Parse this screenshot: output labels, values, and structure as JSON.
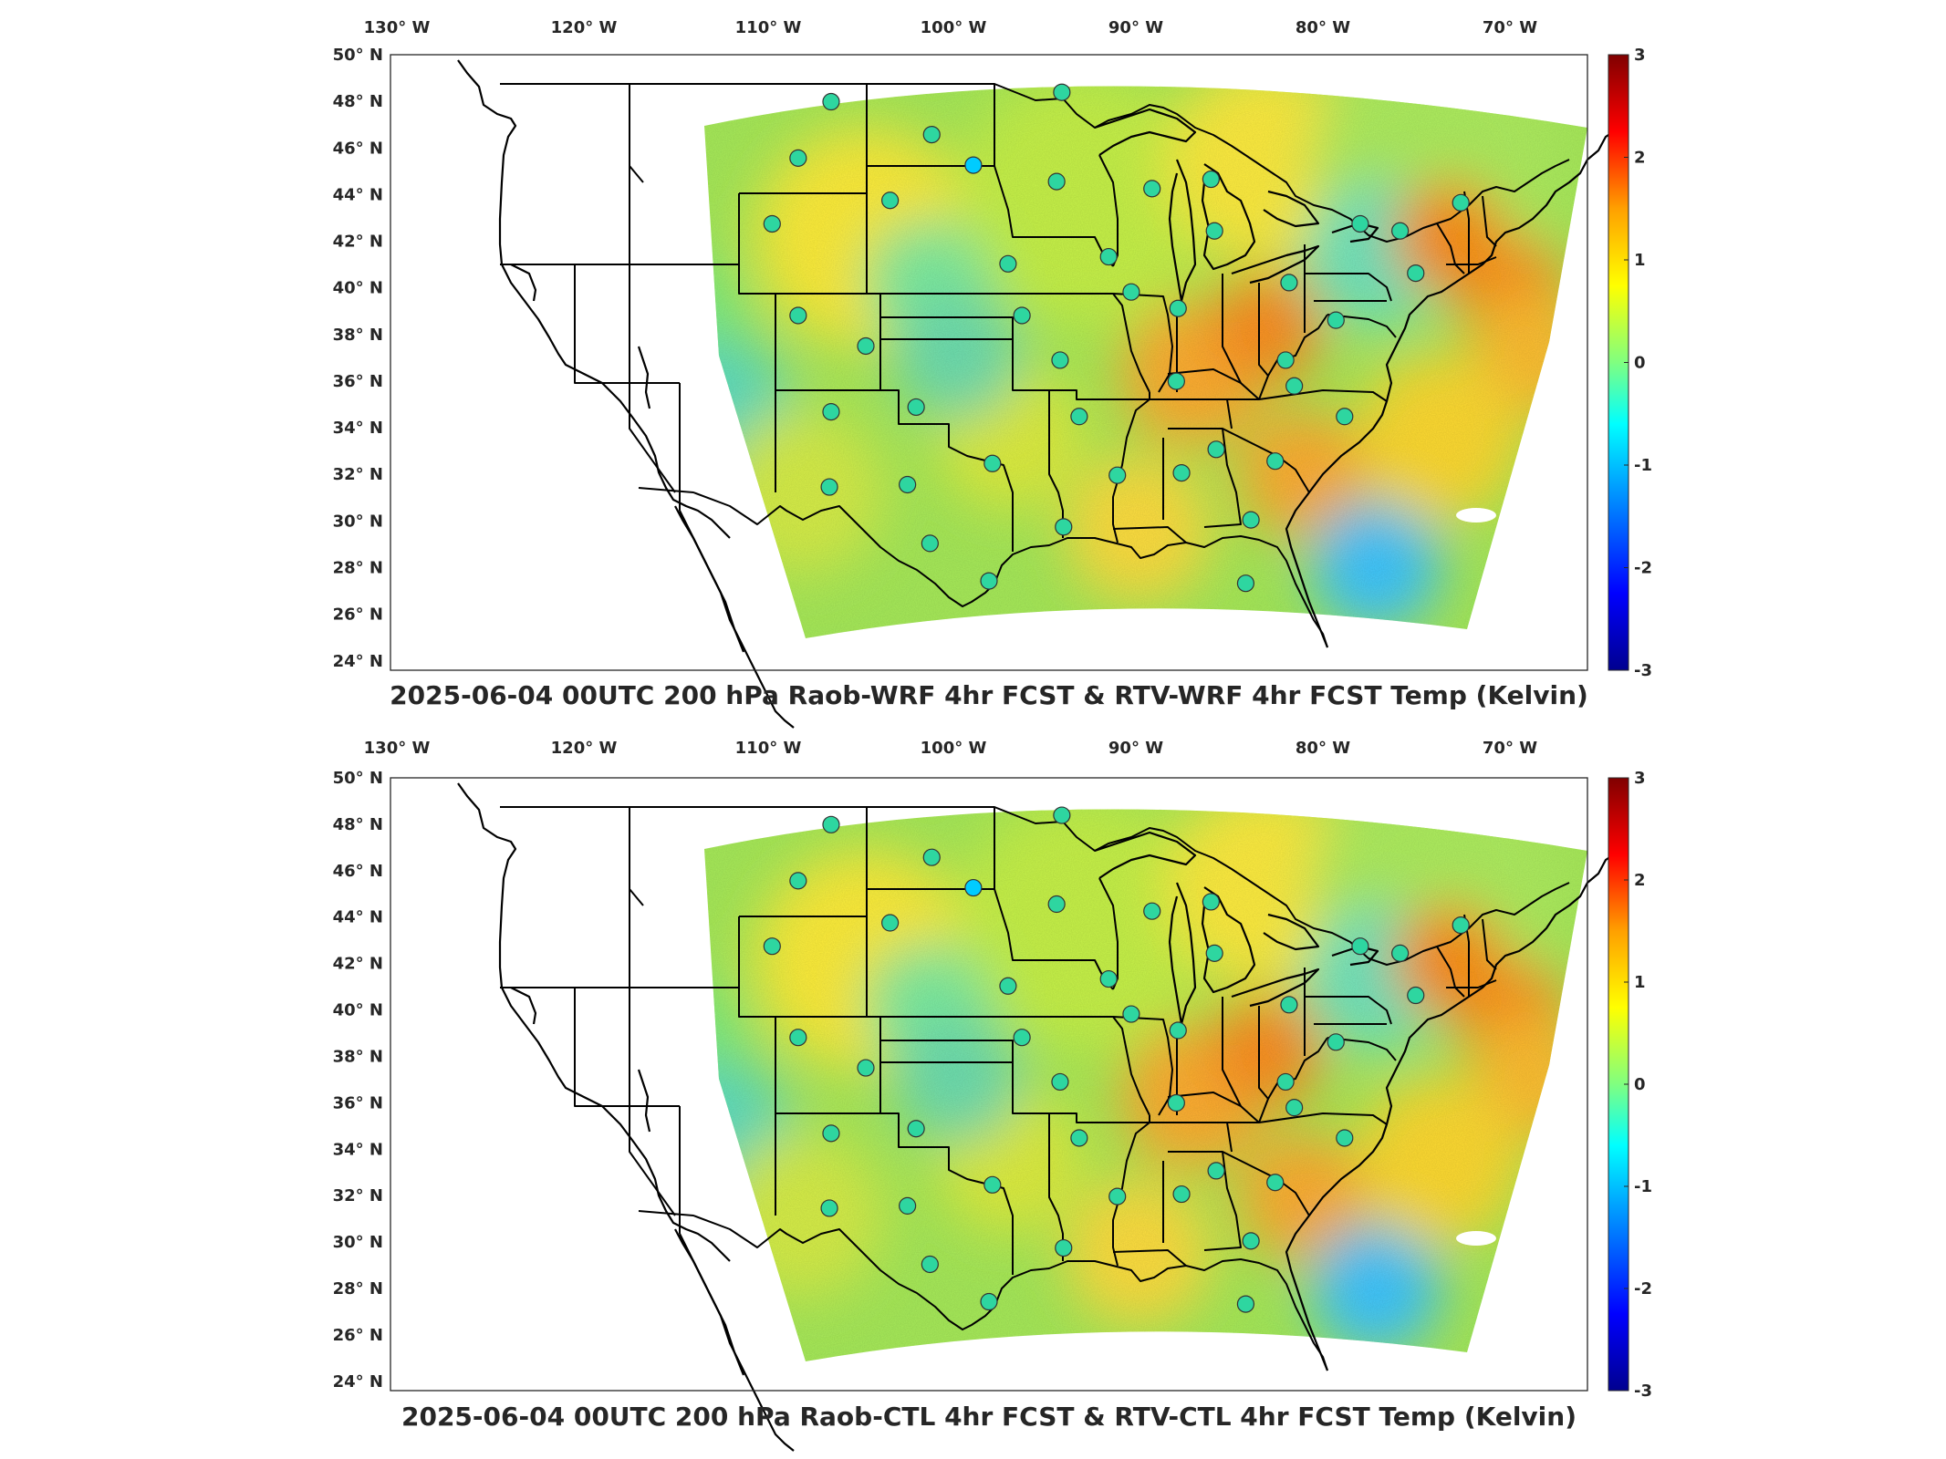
{
  "colors": {
    "scale": [
      "#00008f",
      "#0000ff",
      "#00a0ff",
      "#00ffff",
      "#80ff80",
      "#ffff00",
      "#ffa000",
      "#ff0000",
      "#800000"
    ],
    "frame": "#262626",
    "borders": "#000000",
    "station_fill": "#2ed6a0",
    "station_fill_strong": "#00ccff"
  },
  "panels": [
    {
      "title": "2025-06-04 00UTC 200 hPa Raob-WRF 4hr FCST & RTV-WRF 4hr FCST Temp (Kelvin)",
      "lon_labels": [
        "130° W",
        "120° W",
        "110° W",
        "100° W",
        "90° W",
        "80° W",
        "70° W"
      ],
      "lat_labels": [
        "50° N",
        "48° N",
        "46° N",
        "44° N",
        "42° N",
        "40° N",
        "38° N",
        "36° N",
        "34° N",
        "32° N",
        "30° N",
        "28° N",
        "26° N",
        "24° N"
      ],
      "colorbar_ticks": [
        "3",
        "2",
        "1",
        "0",
        "-1",
        "-2",
        "-3"
      ],
      "colorbar_range": [
        -3,
        3
      ]
    },
    {
      "title": "2025-06-04 00UTC 200 hPa Raob-CTL 4hr FCST & RTV-CTL 4hr FCST Temp (Kelvin)",
      "lon_labels": [
        "130° W",
        "120° W",
        "110° W",
        "100° W",
        "90° W",
        "80° W",
        "70° W"
      ],
      "lat_labels": [
        "50° N",
        "48° N",
        "46° N",
        "44° N",
        "42° N",
        "40° N",
        "38° N",
        "36° N",
        "34° N",
        "32° N",
        "30° N",
        "28° N",
        "26° N",
        "24° N"
      ],
      "colorbar_ticks": [
        "3",
        "2",
        "1",
        "0",
        "-1",
        "-2",
        "-3"
      ],
      "colorbar_range": [
        -3,
        3
      ]
    }
  ],
  "stations": [
    {
      "lon": -106.6,
      "lat": 48.2
    },
    {
      "lon": -93.3,
      "lat": 48.6
    },
    {
      "lon": -100.8,
      "lat": 46.8
    },
    {
      "lon": -98.4,
      "lat": 45.5
    },
    {
      "lon": -108.5,
      "lat": 45.8
    },
    {
      "lon": -93.6,
      "lat": 44.8
    },
    {
      "lon": -88.1,
      "lat": 44.5
    },
    {
      "lon": -84.7,
      "lat": 44.9
    },
    {
      "lon": -110.0,
      "lat": 43.0
    },
    {
      "lon": -103.2,
      "lat": 44.0
    },
    {
      "lon": -84.5,
      "lat": 42.7
    },
    {
      "lon": -76.1,
      "lat": 43.0
    },
    {
      "lon": -73.8,
      "lat": 42.7
    },
    {
      "lon": -70.3,
      "lat": 43.9
    },
    {
      "lon": -96.4,
      "lat": 41.3
    },
    {
      "lon": -90.6,
      "lat": 41.6
    },
    {
      "lon": -89.3,
      "lat": 40.1
    },
    {
      "lon": -80.2,
      "lat": 40.5
    },
    {
      "lon": -72.9,
      "lat": 40.9
    },
    {
      "lon": -108.5,
      "lat": 39.1
    },
    {
      "lon": -95.6,
      "lat": 39.1
    },
    {
      "lon": -104.6,
      "lat": 37.8
    },
    {
      "lon": -86.6,
      "lat": 39.4
    },
    {
      "lon": -77.5,
      "lat": 38.9
    },
    {
      "lon": -80.4,
      "lat": 37.2
    },
    {
      "lon": -93.4,
      "lat": 37.2
    },
    {
      "lon": -86.7,
      "lat": 36.3
    },
    {
      "lon": -79.9,
      "lat": 36.1
    },
    {
      "lon": -106.6,
      "lat": 35.0
    },
    {
      "lon": -101.7,
      "lat": 35.2
    },
    {
      "lon": -92.3,
      "lat": 34.8
    },
    {
      "lon": -77.0,
      "lat": 34.8
    },
    {
      "lon": -106.7,
      "lat": 31.8
    },
    {
      "lon": -102.2,
      "lat": 31.9
    },
    {
      "lon": -97.3,
      "lat": 32.8
    },
    {
      "lon": -90.1,
      "lat": 32.3
    },
    {
      "lon": -86.4,
      "lat": 32.4
    },
    {
      "lon": -84.4,
      "lat": 33.4
    },
    {
      "lon": -81.0,
      "lat": 32.9
    },
    {
      "lon": -100.9,
      "lat": 29.4
    },
    {
      "lon": -97.5,
      "lat": 27.8
    },
    {
      "lon": -93.2,
      "lat": 30.1
    },
    {
      "lon": -82.4,
      "lat": 30.4
    },
    {
      "lon": -82.7,
      "lat": 27.7
    }
  ]
}
